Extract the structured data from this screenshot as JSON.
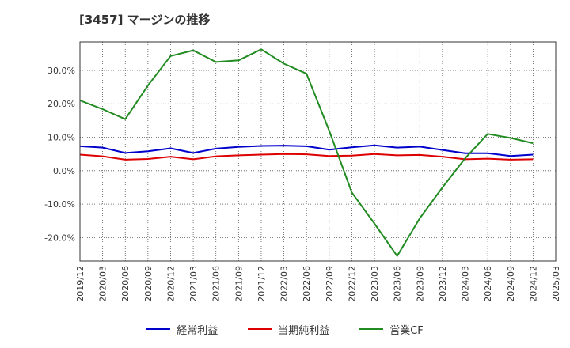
{
  "title": "[3457]  マージンの推移",
  "chart_data": {
    "type": "line",
    "x": [
      "2019/12",
      "2020/03",
      "2020/06",
      "2020/09",
      "2020/12",
      "2021/03",
      "2021/06",
      "2021/09",
      "2021/12",
      "2022/03",
      "2022/06",
      "2022/09",
      "2022/12",
      "2023/03",
      "2023/06",
      "2023/09",
      "2023/12",
      "2024/03",
      "2024/06",
      "2024/09",
      "2024/12",
      "2025/03"
    ],
    "ylim": [
      -27,
      38.5
    ],
    "yticks": [
      30,
      20,
      10,
      0,
      -10,
      -20
    ],
    "ytick_labels": [
      "30.0%",
      "20.0%",
      "10.0%",
      "0.0%",
      "-10.0%",
      "-20.0%"
    ],
    "grid": true,
    "legend_position": "bottom",
    "series": [
      {
        "name": "経常利益",
        "color": "#0000cc",
        "values": [
          7.3,
          6.9,
          5.3,
          5.8,
          6.7,
          5.3,
          6.6,
          7.1,
          7.4,
          7.5,
          7.3,
          6.3,
          7.0,
          7.6,
          6.9,
          7.2,
          6.2,
          5.2,
          5.2,
          4.4,
          4.8,
          null
        ]
      },
      {
        "name": "当期純利益",
        "color": "#dd0000",
        "values": [
          4.8,
          4.3,
          3.3,
          3.5,
          4.2,
          3.4,
          4.3,
          4.6,
          4.8,
          5.0,
          4.9,
          4.4,
          4.5,
          5.0,
          4.6,
          4.7,
          4.2,
          3.4,
          3.6,
          3.3,
          3.4,
          null
        ]
      },
      {
        "name": "営業CF",
        "color": "#228b22",
        "values": [
          21.0,
          18.4,
          15.4,
          25.5,
          34.3,
          36.0,
          32.5,
          33.0,
          36.3,
          32.0,
          29.0,
          12.0,
          -6.5,
          -15.8,
          -25.5,
          -14.2,
          -5.0,
          3.7,
          11.0,
          9.8,
          8.2,
          null
        ]
      }
    ]
  }
}
